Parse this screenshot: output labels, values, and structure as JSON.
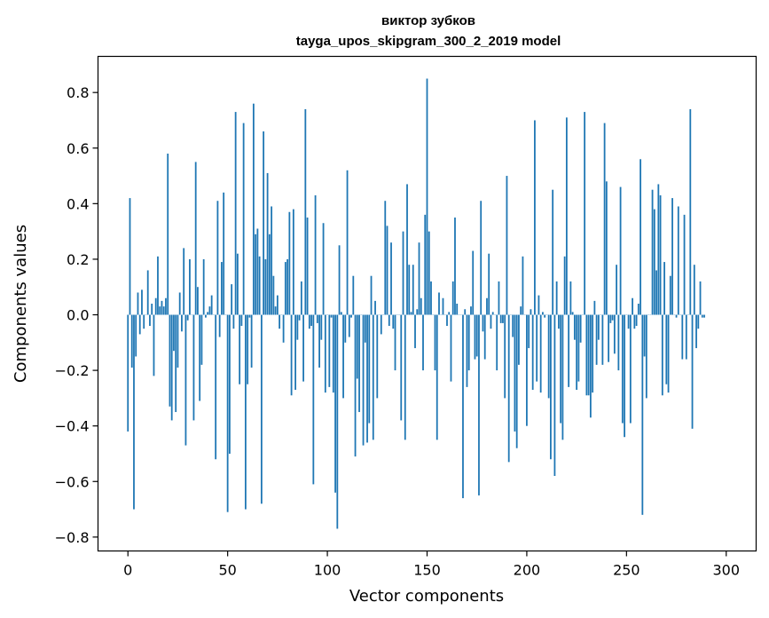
{
  "chart_data": {
    "type": "bar",
    "title": "виктор зубков",
    "subtitle": "tayga_upos_skipgram_300_2_2019 model",
    "xlabel": "Vector components",
    "ylabel": "Components values",
    "xlim": [
      -15,
      315
    ],
    "ylim": [
      -0.85,
      0.93
    ],
    "xticks": [
      0,
      50,
      100,
      150,
      200,
      250,
      300
    ],
    "yticks": [
      -0.8,
      -0.6,
      -0.4,
      -0.2,
      0.0,
      0.2,
      0.4,
      0.6,
      0.8
    ],
    "ytick_labels": [
      "−0.8",
      "−0.6",
      "−0.4",
      "−0.2",
      "0.0",
      "0.2",
      "0.4",
      "0.6",
      "0.8"
    ],
    "bar_color": "#1f77b4",
    "grid": false,
    "values": [
      -0.42,
      0.42,
      -0.19,
      -0.7,
      -0.15,
      0.08,
      -0.07,
      0.09,
      -0.05,
      0.0,
      0.16,
      -0.04,
      0.04,
      -0.22,
      0.06,
      0.21,
      0.03,
      0.05,
      0.03,
      0.06,
      0.58,
      -0.33,
      -0.38,
      -0.13,
      -0.35,
      -0.19,
      0.08,
      -0.06,
      0.24,
      -0.47,
      -0.02,
      0.2,
      0.0,
      -0.38,
      0.55,
      0.1,
      -0.31,
      -0.18,
      0.2,
      -0.01,
      0.01,
      0.03,
      0.07,
      0.0,
      -0.52,
      0.41,
      -0.08,
      0.19,
      0.44,
      0.0,
      -0.71,
      -0.5,
      0.11,
      -0.05,
      0.73,
      0.22,
      -0.25,
      -0.04,
      0.69,
      -0.7,
      -0.25,
      -0.01,
      -0.19,
      0.76,
      0.29,
      0.31,
      0.21,
      -0.68,
      0.66,
      0.2,
      0.51,
      0.29,
      0.39,
      0.14,
      0.03,
      0.07,
      -0.05,
      0.0,
      -0.1,
      0.19,
      0.2,
      0.37,
      -0.29,
      0.38,
      -0.27,
      -0.09,
      -0.02,
      0.12,
      -0.24,
      0.74,
      0.35,
      -0.05,
      -0.04,
      -0.61,
      0.43,
      -0.03,
      -0.19,
      -0.09,
      0.33,
      -0.28,
      0.0,
      -0.26,
      -0.01,
      -0.28,
      -0.64,
      -0.77,
      0.25,
      0.01,
      -0.3,
      -0.1,
      0.52,
      -0.08,
      -0.01,
      0.14,
      -0.51,
      -0.23,
      -0.35,
      0.0,
      -0.47,
      -0.1,
      -0.46,
      -0.39,
      0.14,
      -0.45,
      0.05,
      -0.3,
      0.0,
      -0.07,
      0.0,
      0.41,
      0.32,
      -0.04,
      0.26,
      -0.05,
      -0.2,
      0.0,
      0.0,
      -0.38,
      0.3,
      -0.45,
      0.47,
      0.18,
      0.01,
      0.18,
      -0.12,
      0.02,
      0.26,
      0.06,
      -0.2,
      0.36,
      0.85,
      0.3,
      0.12,
      0.0,
      -0.2,
      -0.45,
      0.08,
      0.0,
      0.06,
      0.0,
      -0.04,
      0.01,
      -0.24,
      0.12,
      0.35,
      0.04,
      0.0,
      0.0,
      -0.66,
      0.02,
      -0.26,
      -0.2,
      0.03,
      0.23,
      -0.16,
      -0.15,
      -0.65,
      0.41,
      -0.06,
      -0.16,
      0.06,
      0.22,
      -0.05,
      0.01,
      0.0,
      -0.2,
      0.12,
      -0.03,
      -0.03,
      -0.3,
      0.5,
      -0.53,
      0.0,
      -0.08,
      -0.42,
      -0.48,
      -0.18,
      0.03,
      0.21,
      0.0,
      -0.4,
      -0.12,
      0.02,
      -0.27,
      0.7,
      -0.24,
      0.07,
      -0.28,
      0.01,
      -0.01,
      0.0,
      -0.3,
      -0.52,
      0.45,
      -0.58,
      0.12,
      -0.05,
      -0.39,
      -0.45,
      0.21,
      0.71,
      -0.26,
      0.12,
      0.01,
      -0.09,
      -0.27,
      -0.24,
      -0.1,
      0.0,
      0.73,
      -0.29,
      -0.29,
      -0.37,
      -0.28,
      0.05,
      -0.18,
      -0.09,
      0.0,
      -0.18,
      0.69,
      0.48,
      -0.17,
      -0.03,
      -0.02,
      -0.14,
      0.18,
      -0.2,
      0.46,
      -0.39,
      -0.44,
      0.0,
      -0.05,
      -0.39,
      0.06,
      -0.05,
      -0.04,
      0.04,
      0.56,
      -0.72,
      -0.15,
      -0.3,
      0.0,
      0.0,
      0.45,
      0.38,
      0.16,
      0.47,
      0.43,
      -0.29,
      0.19,
      -0.25,
      -0.28,
      0.14,
      0.42,
      0.0,
      -0.01,
      0.39,
      0.0,
      -0.16,
      0.36,
      -0.16,
      0.0,
      0.74,
      -0.41,
      0.18,
      -0.12,
      -0.05,
      0.12,
      -0.01,
      -0.01
    ]
  }
}
